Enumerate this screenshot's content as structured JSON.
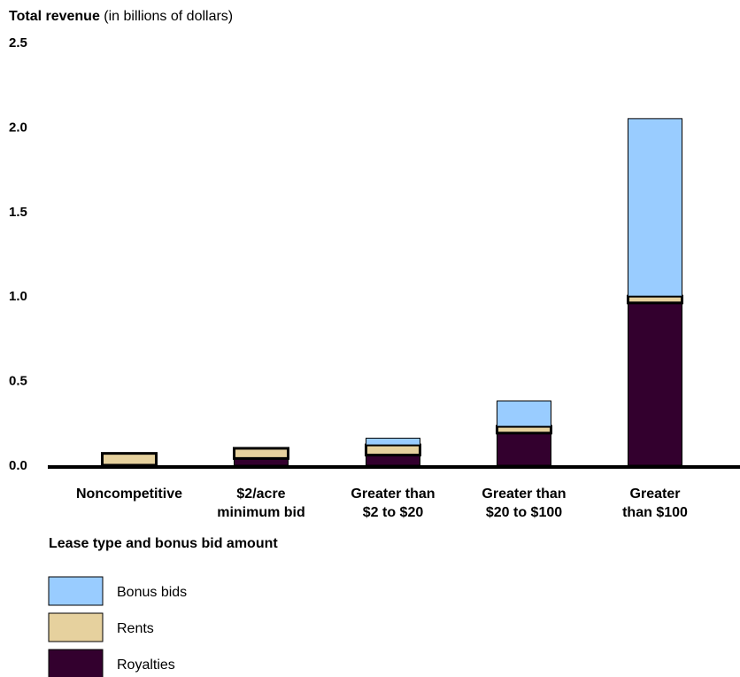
{
  "chart_data": {
    "type": "bar",
    "stacked": true,
    "ylabel_bold": "Total revenue",
    "ylabel_rest": " (in billions of dollars)",
    "xlabel": "Lease type and bonus bid amount",
    "ylim": [
      0,
      2.5
    ],
    "yticks": [
      "0.0",
      "0.5",
      "1.0",
      "1.5",
      "2.0",
      "2.5"
    ],
    "ytick_values": [
      0,
      0.5,
      1.0,
      1.5,
      2.0,
      2.5
    ],
    "categories": [
      [
        "Noncompetitive"
      ],
      [
        "$2/acre",
        "minimum bid"
      ],
      [
        "Greater than",
        "$2 to $20"
      ],
      [
        "Greater than",
        "$20 to $100"
      ],
      [
        "Greater",
        "than $100"
      ]
    ],
    "series": [
      {
        "name": "Royalties",
        "color": "#33002e",
        "values": [
          0.0,
          0.04,
          0.06,
          0.19,
          0.96
        ]
      },
      {
        "name": "Rents",
        "color": "#e6d19e",
        "values": [
          0.07,
          0.06,
          0.06,
          0.04,
          0.04
        ]
      },
      {
        "name": "Bonus bids",
        "color": "#99ccff",
        "values": [
          0.0,
          0.0,
          0.04,
          0.15,
          1.05
        ]
      }
    ],
    "legend": [
      {
        "name": "Bonus bids",
        "color": "#99ccff"
      },
      {
        "name": "Rents",
        "color": "#e6d19e"
      },
      {
        "name": "Royalties",
        "color": "#33002e"
      }
    ],
    "legend_position": "bottom-left",
    "grid": false
  }
}
